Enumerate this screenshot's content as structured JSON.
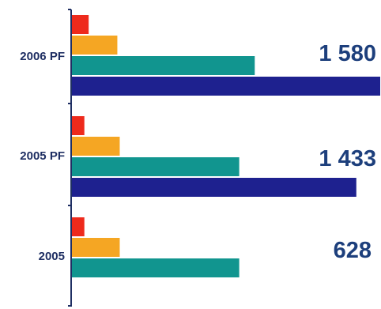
{
  "chart_data": {
    "type": "bar",
    "orientation": "horizontal",
    "stacked": false,
    "categories": [
      "2006 PF",
      "2005 PF",
      "2005"
    ],
    "series": [
      {
        "values": [
          70,
          52,
          52
        ],
        "color": "#ee2a1c"
      },
      {
        "values": [
          190,
          200,
          200
        ],
        "color": "#f5a623"
      },
      {
        "values": [
          765,
          700,
          700
        ],
        "color": "#11958f"
      },
      {
        "values": [
          1290,
          1190,
          0
        ],
        "color": "#1e218f"
      }
    ],
    "totals": [
      "1 580",
      "1 433",
      "628"
    ],
    "xlim": [
      0,
      1290
    ],
    "title": "",
    "xlabel": "",
    "ylabel": "",
    "grid": false,
    "legend": "none"
  }
}
